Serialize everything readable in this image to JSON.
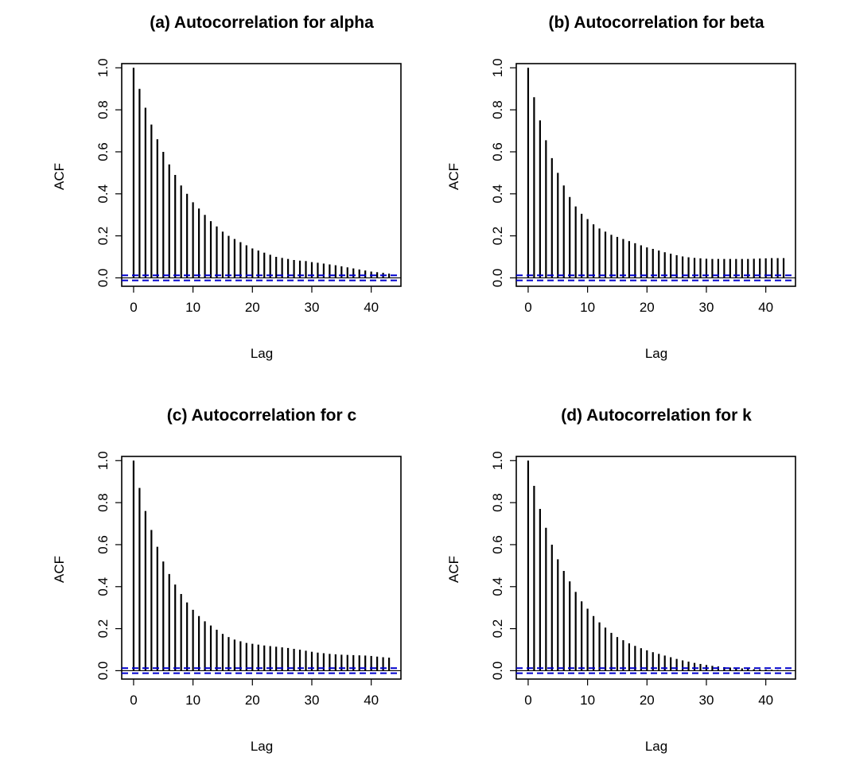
{
  "figure": {
    "conf_line_color": "#0000CC",
    "bar_color": "#000000"
  },
  "chart_data": [
    {
      "type": "bar",
      "subtype": "acf-stem",
      "title": "(a) Autocorrelation for alpha",
      "xlabel": "Lag",
      "ylabel": "ACF",
      "xlim": [
        -2,
        45
      ],
      "ylim": [
        -0.04,
        1.02
      ],
      "xticks": [
        0,
        10,
        20,
        30,
        40
      ],
      "yticks": [
        0.0,
        0.2,
        0.4,
        0.6,
        0.8,
        1.0
      ],
      "xtick_labels": [
        "0",
        "10",
        "20",
        "30",
        "40"
      ],
      "ytick_labels": [
        "0.0",
        "0.2",
        "0.4",
        "0.6",
        "0.8",
        "1.0"
      ],
      "confidence_band": [
        -0.012,
        0.012
      ],
      "grid": false,
      "x": [
        0,
        1,
        2,
        3,
        4,
        5,
        6,
        7,
        8,
        9,
        10,
        11,
        12,
        13,
        14,
        15,
        16,
        17,
        18,
        19,
        20,
        21,
        22,
        23,
        24,
        25,
        26,
        27,
        28,
        29,
        30,
        31,
        32,
        33,
        34,
        35,
        36,
        37,
        38,
        39,
        40,
        41,
        42,
        43
      ],
      "values": [
        1.0,
        0.9,
        0.81,
        0.73,
        0.66,
        0.6,
        0.54,
        0.49,
        0.44,
        0.4,
        0.36,
        0.33,
        0.3,
        0.27,
        0.245,
        0.22,
        0.2,
        0.185,
        0.17,
        0.155,
        0.14,
        0.13,
        0.12,
        0.11,
        0.1,
        0.095,
        0.09,
        0.085,
        0.082,
        0.08,
        0.075,
        0.072,
        0.068,
        0.064,
        0.06,
        0.055,
        0.05,
        0.045,
        0.04,
        0.035,
        0.03,
        0.027,
        0.024,
        0.02
      ]
    },
    {
      "type": "bar",
      "subtype": "acf-stem",
      "title": "(b) Autocorrelation for beta",
      "xlabel": "Lag",
      "ylabel": "ACF",
      "xlim": [
        -2,
        45
      ],
      "ylim": [
        -0.04,
        1.02
      ],
      "xticks": [
        0,
        10,
        20,
        30,
        40
      ],
      "yticks": [
        0.0,
        0.2,
        0.4,
        0.6,
        0.8,
        1.0
      ],
      "xtick_labels": [
        "0",
        "10",
        "20",
        "30",
        "40"
      ],
      "ytick_labels": [
        "0.0",
        "0.2",
        "0.4",
        "0.6",
        "0.8",
        "1.0"
      ],
      "confidence_band": [
        -0.012,
        0.012
      ],
      "grid": false,
      "x": [
        0,
        1,
        2,
        3,
        4,
        5,
        6,
        7,
        8,
        9,
        10,
        11,
        12,
        13,
        14,
        15,
        16,
        17,
        18,
        19,
        20,
        21,
        22,
        23,
        24,
        25,
        26,
        27,
        28,
        29,
        30,
        31,
        32,
        33,
        34,
        35,
        36,
        37,
        38,
        39,
        40,
        41,
        42,
        43
      ],
      "values": [
        1.0,
        0.86,
        0.75,
        0.655,
        0.57,
        0.5,
        0.44,
        0.385,
        0.34,
        0.305,
        0.28,
        0.255,
        0.235,
        0.22,
        0.205,
        0.195,
        0.185,
        0.175,
        0.165,
        0.155,
        0.145,
        0.138,
        0.13,
        0.122,
        0.115,
        0.108,
        0.102,
        0.098,
        0.095,
        0.093,
        0.091,
        0.09,
        0.09,
        0.09,
        0.09,
        0.09,
        0.09,
        0.09,
        0.091,
        0.092,
        0.093,
        0.094,
        0.094,
        0.094
      ]
    },
    {
      "type": "bar",
      "subtype": "acf-stem",
      "title": "(c) Autocorrelation for c",
      "xlabel": "Lag",
      "ylabel": "ACF",
      "xlim": [
        -2,
        45
      ],
      "ylim": [
        -0.04,
        1.02
      ],
      "xticks": [
        0,
        10,
        20,
        30,
        40
      ],
      "yticks": [
        0.0,
        0.2,
        0.4,
        0.6,
        0.8,
        1.0
      ],
      "xtick_labels": [
        "0",
        "10",
        "20",
        "30",
        "40"
      ],
      "ytick_labels": [
        "0.0",
        "0.2",
        "0.4",
        "0.6",
        "0.8",
        "1.0"
      ],
      "confidence_band": [
        -0.012,
        0.012
      ],
      "grid": false,
      "x": [
        0,
        1,
        2,
        3,
        4,
        5,
        6,
        7,
        8,
        9,
        10,
        11,
        12,
        13,
        14,
        15,
        16,
        17,
        18,
        19,
        20,
        21,
        22,
        23,
        24,
        25,
        26,
        27,
        28,
        29,
        30,
        31,
        32,
        33,
        34,
        35,
        36,
        37,
        38,
        39,
        40,
        41,
        42,
        43
      ],
      "values": [
        1.0,
        0.87,
        0.76,
        0.67,
        0.59,
        0.52,
        0.46,
        0.41,
        0.365,
        0.325,
        0.29,
        0.26,
        0.235,
        0.215,
        0.195,
        0.175,
        0.16,
        0.148,
        0.14,
        0.132,
        0.128,
        0.124,
        0.12,
        0.117,
        0.114,
        0.111,
        0.108,
        0.104,
        0.1,
        0.095,
        0.09,
        0.086,
        0.083,
        0.08,
        0.078,
        0.076,
        0.075,
        0.074,
        0.073,
        0.072,
        0.07,
        0.067,
        0.064,
        0.062
      ]
    },
    {
      "type": "bar",
      "subtype": "acf-stem",
      "title": "(d) Autocorrelation for k",
      "xlabel": "Lag",
      "ylabel": "ACF",
      "xlim": [
        -2,
        45
      ],
      "ylim": [
        -0.04,
        1.02
      ],
      "xticks": [
        0,
        10,
        20,
        30,
        40
      ],
      "yticks": [
        0.0,
        0.2,
        0.4,
        0.6,
        0.8,
        1.0
      ],
      "xtick_labels": [
        "0",
        "10",
        "20",
        "30",
        "40"
      ],
      "ytick_labels": [
        "0.0",
        "0.2",
        "0.4",
        "0.6",
        "0.8",
        "1.0"
      ],
      "confidence_band": [
        -0.012,
        0.012
      ],
      "grid": false,
      "x": [
        0,
        1,
        2,
        3,
        4,
        5,
        6,
        7,
        8,
        9,
        10,
        11,
        12,
        13,
        14,
        15,
        16,
        17,
        18,
        19,
        20,
        21,
        22,
        23,
        24,
        25,
        26,
        27,
        28,
        29,
        30,
        31,
        32,
        33,
        34,
        35,
        36,
        37,
        38,
        39,
        40,
        41,
        42,
        43
      ],
      "values": [
        1.0,
        0.88,
        0.77,
        0.68,
        0.6,
        0.53,
        0.475,
        0.425,
        0.375,
        0.33,
        0.295,
        0.26,
        0.23,
        0.205,
        0.18,
        0.16,
        0.145,
        0.13,
        0.118,
        0.107,
        0.097,
        0.088,
        0.08,
        0.072,
        0.064,
        0.056,
        0.049,
        0.043,
        0.037,
        0.032,
        0.027,
        0.023,
        0.02,
        0.017,
        0.015,
        0.013,
        0.011,
        0.009,
        0.007,
        0.006,
        0.005,
        0.004,
        0.003,
        0.002
      ]
    }
  ]
}
